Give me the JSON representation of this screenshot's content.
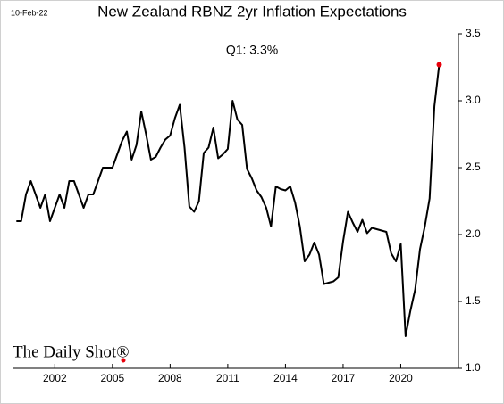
{
  "chart_data": {
    "type": "line",
    "title": "New Zealand RBNZ 2yr Inflation Expectations",
    "date_label": "10-Feb-22",
    "annotation": "Q1:  3.3%",
    "source": "The Daily Shot®",
    "x": [
      2000,
      2000.25,
      2000.5,
      2000.75,
      2001,
      2001.25,
      2001.5,
      2001.75,
      2002,
      2002.25,
      2002.5,
      2002.75,
      2003,
      2003.25,
      2003.5,
      2003.75,
      2004,
      2004.25,
      2004.5,
      2004.75,
      2005,
      2005.25,
      2005.5,
      2005.75,
      2006,
      2006.25,
      2006.5,
      2006.75,
      2007,
      2007.25,
      2007.5,
      2007.75,
      2008,
      2008.25,
      2008.5,
      2008.75,
      2009,
      2009.25,
      2009.5,
      2009.75,
      2010,
      2010.25,
      2010.5,
      2010.75,
      2011,
      2011.25,
      2011.5,
      2011.75,
      2012,
      2012.25,
      2012.5,
      2012.75,
      2013,
      2013.25,
      2013.5,
      2013.75,
      2014,
      2014.25,
      2014.5,
      2014.75,
      2015,
      2015.25,
      2015.5,
      2015.75,
      2016,
      2016.25,
      2016.5,
      2016.75,
      2017,
      2017.25,
      2017.5,
      2017.75,
      2018,
      2018.25,
      2018.5,
      2018.75,
      2019,
      2019.25,
      2019.5,
      2019.75,
      2020,
      2020.25,
      2020.5,
      2020.75,
      2021,
      2021.25,
      2021.5,
      2021.75,
      2022
    ],
    "series": [
      {
        "name": "RBNZ 2yr inflation expectations",
        "color": "#000000",
        "values": [
          2.1,
          2.1,
          2.3,
          2.4,
          2.3,
          2.2,
          2.3,
          2.1,
          2.2,
          2.3,
          2.2,
          2.4,
          2.4,
          2.3,
          2.2,
          2.3,
          2.3,
          2.4,
          2.5,
          2.5,
          2.5,
          2.6,
          2.7,
          2.77,
          2.56,
          2.67,
          2.92,
          2.75,
          2.56,
          2.58,
          2.65,
          2.71,
          2.74,
          2.87,
          2.97,
          2.65,
          2.21,
          2.17,
          2.25,
          2.61,
          2.65,
          2.8,
          2.57,
          2.6,
          2.64,
          3.0,
          2.86,
          2.82,
          2.49,
          2.42,
          2.33,
          2.28,
          2.2,
          2.06,
          2.36,
          2.34,
          2.33,
          2.36,
          2.24,
          2.06,
          1.8,
          1.85,
          1.94,
          1.85,
          1.63,
          1.64,
          1.65,
          1.68,
          1.95,
          2.17,
          2.09,
          2.02,
          2.11,
          2.01,
          2.05,
          2.04,
          2.03,
          2.02,
          1.86,
          1.8,
          1.93,
          1.24,
          1.43,
          1.59,
          1.89,
          2.06,
          2.27,
          2.96,
          3.27
        ]
      }
    ],
    "last_point_color": "#e8000b",
    "xlim": [
      1999.8,
      2023
    ],
    "xticks": [
      2002,
      2005,
      2008,
      2011,
      2014,
      2017,
      2020
    ],
    "ylim": [
      1.0,
      3.5
    ],
    "yticks": [
      {
        "value": 1.0,
        "label": "1.0"
      },
      {
        "value": 1.5,
        "label": "1.5"
      },
      {
        "value": 2.0,
        "label": "2.0"
      },
      {
        "value": 2.5,
        "label": "2.5"
      },
      {
        "value": 3.0,
        "label": "3.0"
      },
      {
        "value": 3.5,
        "label": "3.5"
      }
    ],
    "grid": false
  }
}
